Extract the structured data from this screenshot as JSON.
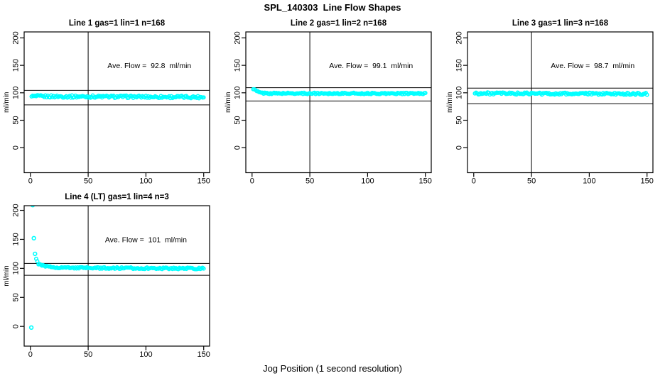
{
  "page": {
    "title": "SPL_140303  Line Flow Shapes",
    "xlabel": "Jog Position (1 second resolution)",
    "background_color": "#ffffff",
    "point_color": "#00ffff",
    "axis_color": "#000000"
  },
  "chart_data": [
    {
      "type": "scatter",
      "title": "Line 1 gas=1 lin=1 n=168",
      "annotation": "Ave. Flow =  92.8  ml/min",
      "ave_flow_ml_min": 92.8,
      "n": 168,
      "ylabel": "ml/min",
      "x_ticks": [
        0,
        50,
        100,
        150
      ],
      "y_ticks": [
        0,
        50,
        100,
        150,
        200
      ],
      "xlim": [
        -5.4,
        155.1
      ],
      "ylim": [
        -45.6,
        210.9
      ],
      "vline_x": 50,
      "ref_lines": [
        104.5,
        78
      ],
      "annotation_at": [
        103,
        150
      ],
      "grid": {
        "row": 0,
        "col": 0
      },
      "series": {
        "name": "flow",
        "x_start": 1,
        "x_end": 150,
        "x_step": 1,
        "keypoints": [
          [
            1,
            95
          ],
          [
            2,
            93.5
          ],
          [
            150,
            92.2
          ]
        ],
        "noise_amp": 2.2,
        "seed": 1
      },
      "outliers": []
    },
    {
      "type": "scatter",
      "title": "Line 2 gas=1 lin=2 n=168",
      "annotation": "Ave. Flow =  99.1  ml/min",
      "ave_flow_ml_min": 99.1,
      "n": 168,
      "ylabel": "ml/min",
      "x_ticks": [
        0,
        50,
        100,
        150
      ],
      "y_ticks": [
        0,
        50,
        100,
        150,
        200
      ],
      "xlim": [
        -5.4,
        155.1
      ],
      "ylim": [
        -45.6,
        210.9
      ],
      "vline_x": 50,
      "ref_lines": [
        109.3,
        85
      ],
      "annotation_at": [
        103,
        150
      ],
      "grid": {
        "row": 0,
        "col": 1
      },
      "series": {
        "name": "flow",
        "x_start": 1,
        "x_end": 150,
        "x_step": 1,
        "keypoints": [
          [
            1,
            106.5
          ],
          [
            2,
            105.5
          ],
          [
            3,
            104.5
          ],
          [
            4,
            103
          ],
          [
            5,
            102
          ],
          [
            6,
            101
          ],
          [
            7,
            100.3
          ],
          [
            9,
            99.5
          ],
          [
            15,
            99
          ],
          [
            150,
            98.7
          ]
        ],
        "noise_amp": 1.3,
        "seed": 2
      },
      "outliers": []
    },
    {
      "type": "scatter",
      "title": "Line 3 gas=1 lin=3 n=168",
      "annotation": "Ave. Flow =  98.7  ml/min",
      "ave_flow_ml_min": 98.7,
      "n": 168,
      "ylabel": "ml/min",
      "x_ticks": [
        0,
        50,
        100,
        150
      ],
      "y_ticks": [
        0,
        50,
        100,
        150,
        200
      ],
      "xlim": [
        -5.4,
        155.1
      ],
      "ylim": [
        -45.6,
        210.9
      ],
      "vline_x": 50,
      "ref_lines": [
        108.5,
        80
      ],
      "annotation_at": [
        103,
        150
      ],
      "grid": {
        "row": 0,
        "col": 2
      },
      "series": {
        "name": "flow",
        "x_start": 1,
        "x_end": 150,
        "x_step": 1,
        "keypoints": [
          [
            1,
            99.5
          ],
          [
            4,
            98.8
          ],
          [
            150,
            98
          ]
        ],
        "noise_amp": 2.0,
        "seed": 3
      },
      "outliers": []
    },
    {
      "type": "scatter",
      "title": "Line 4 (LT) gas=1 lin=4 n=3",
      "annotation": "Ave. Flow =  101  ml/min",
      "ave_flow_ml_min": 101,
      "n": 3,
      "ylabel": "ml/min",
      "x_ticks": [
        0,
        50,
        100,
        150
      ],
      "y_ticks": [
        0,
        50,
        100,
        150,
        200
      ],
      "xlim": [
        -5.4,
        155.1
      ],
      "ylim": [
        -34,
        208
      ],
      "vline_x": 50,
      "ref_lines": [
        108.5,
        88
      ],
      "annotation_at": [
        100,
        150
      ],
      "grid": {
        "row": 1,
        "col": 0
      },
      "series": {
        "name": "flow",
        "x_start": 5,
        "x_end": 150,
        "x_step": 1,
        "keypoints": [
          [
            5,
            116
          ],
          [
            6,
            111
          ],
          [
            7,
            108
          ],
          [
            9,
            105.5
          ],
          [
            12,
            104
          ],
          [
            16,
            102.5
          ],
          [
            22,
            101.8
          ],
          [
            35,
            101
          ],
          [
            60,
            100.6
          ],
          [
            100,
            100.2
          ],
          [
            150,
            99.8
          ]
        ],
        "noise_amp": 1.4,
        "seed": 4
      },
      "outliers": [
        [
          0.8,
          -2
        ],
        [
          2,
          209
        ],
        [
          3,
          152
        ],
        [
          4,
          125
        ]
      ]
    }
  ]
}
